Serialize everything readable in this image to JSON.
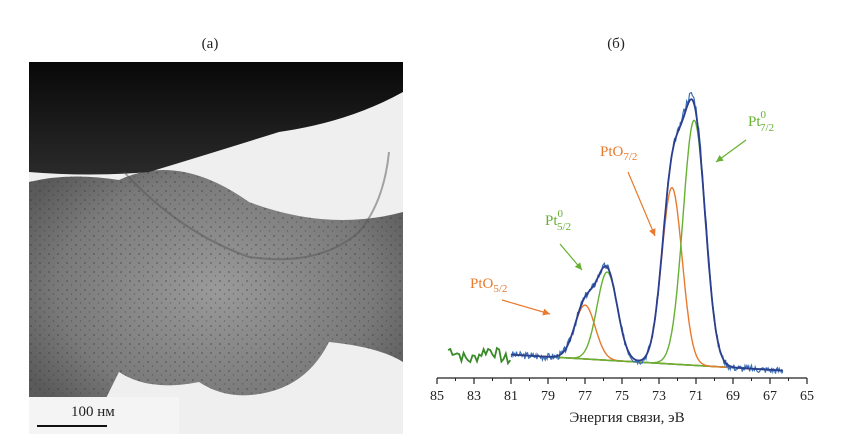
{
  "figure": {
    "panel_a_label": "(а)",
    "panel_b_label": "(б)",
    "scale_bar": "100 нм"
  },
  "colors": {
    "envelope": "#2c3e8f",
    "experimental": "#3a6fb5",
    "pt_oxide": "#e87a2e",
    "pt_metal": "#66b032",
    "background": "#3a8a2a"
  },
  "chart_data": {
    "type": "line",
    "xlabel": "Энергия связи, эВ",
    "xlim": [
      85,
      65
    ],
    "x_reversed": true,
    "x_ticks": [
      85,
      83,
      81,
      79,
      77,
      75,
      73,
      71,
      69,
      67,
      65
    ],
    "ylabel": "",
    "y_axis_shown": false,
    "grid": false,
    "peaks": [
      {
        "label": "PtO",
        "sub": "5/2",
        "sup": "",
        "center": 77.0,
        "height": 0.22,
        "width": 0.55,
        "color": "#e87a2e"
      },
      {
        "label": "Pt",
        "sub": "5/2",
        "sup": "0",
        "center": 75.8,
        "height": 0.36,
        "width": 0.55,
        "color": "#66b032"
      },
      {
        "label": "PtO",
        "sub": "7/2",
        "sup": "",
        "center": 72.3,
        "height": 0.72,
        "width": 0.55,
        "color": "#e87a2e"
      },
      {
        "label": "Pt",
        "sub": "7/2",
        "sup": "0",
        "center": 71.1,
        "height": 1.0,
        "width": 0.6,
        "color": "#66b032"
      }
    ],
    "background_range": [
      81,
      66.3
    ],
    "noisy_tail_range": [
      84.4,
      81
    ]
  }
}
